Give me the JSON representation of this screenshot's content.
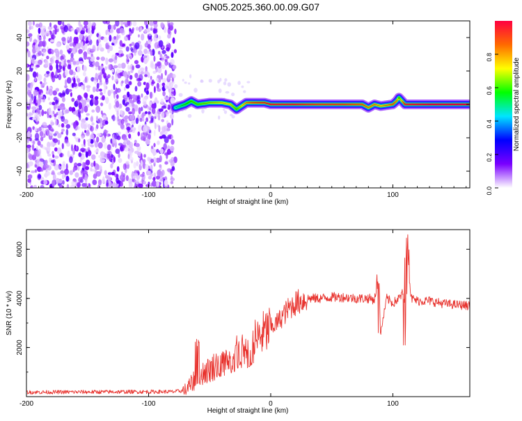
{
  "title": "GN05.2025.360.00.09.G07",
  "chart_data": [
    {
      "type": "heatmap",
      "xlabel": "Height of straight line (km)",
      "ylabel": "Frequency (Hz)",
      "xlim": [
        -200,
        163
      ],
      "ylim": [
        -50,
        50
      ],
      "xticks": [
        -200,
        -100,
        0,
        100
      ],
      "xtick_labels": [
        "-200",
        "-100",
        "0",
        "100"
      ],
      "yticks": [
        -40,
        -20,
        0,
        20,
        40
      ],
      "ytick_labels": [
        "-40",
        "-20",
        "0",
        "20",
        "40"
      ],
      "noise_region": {
        "x_range": [
          -200,
          -78
        ],
        "description": "scattered low-amplitude purple blobs"
      },
      "signal_ridge": {
        "x": [
          -78,
          -70,
          -65,
          -60,
          -50,
          -40,
          -33,
          -28,
          -20,
          -15,
          -5,
          0,
          20,
          40,
          60,
          75,
          80,
          85,
          90,
          100,
          103,
          105,
          110,
          130,
          163
        ],
        "y": [
          -2,
          0,
          2,
          0,
          1,
          1,
          0,
          -3,
          1,
          1,
          1,
          0,
          0,
          0,
          0,
          0,
          -2,
          0,
          -1,
          0,
          2,
          4,
          0,
          0,
          0
        ],
        "amplitude": [
          0.45,
          0.55,
          0.6,
          0.6,
          0.65,
          0.7,
          0.7,
          0.6,
          0.8,
          0.85,
          0.9,
          0.95,
          0.95,
          0.9,
          0.9,
          0.85,
          0.8,
          0.8,
          0.75,
          0.85,
          0.8,
          0.6,
          0.95,
          1.0,
          1.0
        ]
      },
      "colorbar": {
        "label": "Normalized spectral amplitude",
        "range": [
          0.0,
          1.0
        ],
        "ticks": [
          0.0,
          0.2,
          0.4,
          0.6,
          0.8
        ],
        "tick_labels": [
          "0.0",
          "0.2",
          "0.4",
          "0.6",
          "0.8"
        ],
        "colors": [
          "#ffffff",
          "#7a00ff",
          "#0000ff",
          "#00e5ff",
          "#00ff00",
          "#ffff00",
          "#ff6a00",
          "#ff0040"
        ]
      }
    },
    {
      "type": "line",
      "xlabel": "Height of straight line (km)",
      "ylabel": "SNR (10 * v/v)",
      "xlim": [
        -200,
        163
      ],
      "ylim": [
        0,
        6800
      ],
      "xticks": [
        -200,
        -100,
        0,
        100
      ],
      "xtick_labels": [
        "-200",
        "-100",
        "0",
        "100"
      ],
      "yticks": [
        2000,
        4000,
        6000
      ],
      "ytick_labels": [
        "2000",
        "4000",
        "6000"
      ],
      "series": [
        {
          "name": "SNR",
          "color": "#e8332e",
          "x": [
            -200,
            -150,
            -100,
            -80,
            -70,
            -65,
            -60,
            -55,
            -50,
            -45,
            -40,
            -35,
            -30,
            -25,
            -20,
            -15,
            -10,
            -5,
            0,
            5,
            10,
            15,
            20,
            25,
            30,
            40,
            50,
            60,
            70,
            80,
            85,
            88,
            90,
            95,
            100,
            105,
            108,
            110,
            111,
            112,
            113,
            115,
            120,
            130,
            140,
            150,
            163
          ],
          "y": [
            180,
            190,
            200,
            200,
            250,
            500,
            900,
            1000,
            1100,
            1300,
            1400,
            1500,
            1700,
            1800,
            1900,
            2200,
            2400,
            2600,
            2800,
            3000,
            3300,
            3600,
            3800,
            3900,
            4000,
            4000,
            4050,
            4050,
            4000,
            4000,
            3950,
            5000,
            2600,
            4000,
            3800,
            4000,
            4200,
            3800,
            2100,
            6700,
            5200,
            4000,
            3900,
            3900,
            3800,
            3750,
            3700
          ]
        }
      ],
      "spikes": [
        {
          "x": -60,
          "y_max": 2400
        },
        {
          "x": -40,
          "y_max": 2200
        },
        {
          "x": -30,
          "y_max": 2700
        },
        {
          "x": -18,
          "y_max": 3900
        },
        {
          "x": 88,
          "y_max": 5000,
          "y_min": 2600
        },
        {
          "x": 111,
          "y_max": 6700,
          "y_min": 2100
        }
      ]
    }
  ]
}
